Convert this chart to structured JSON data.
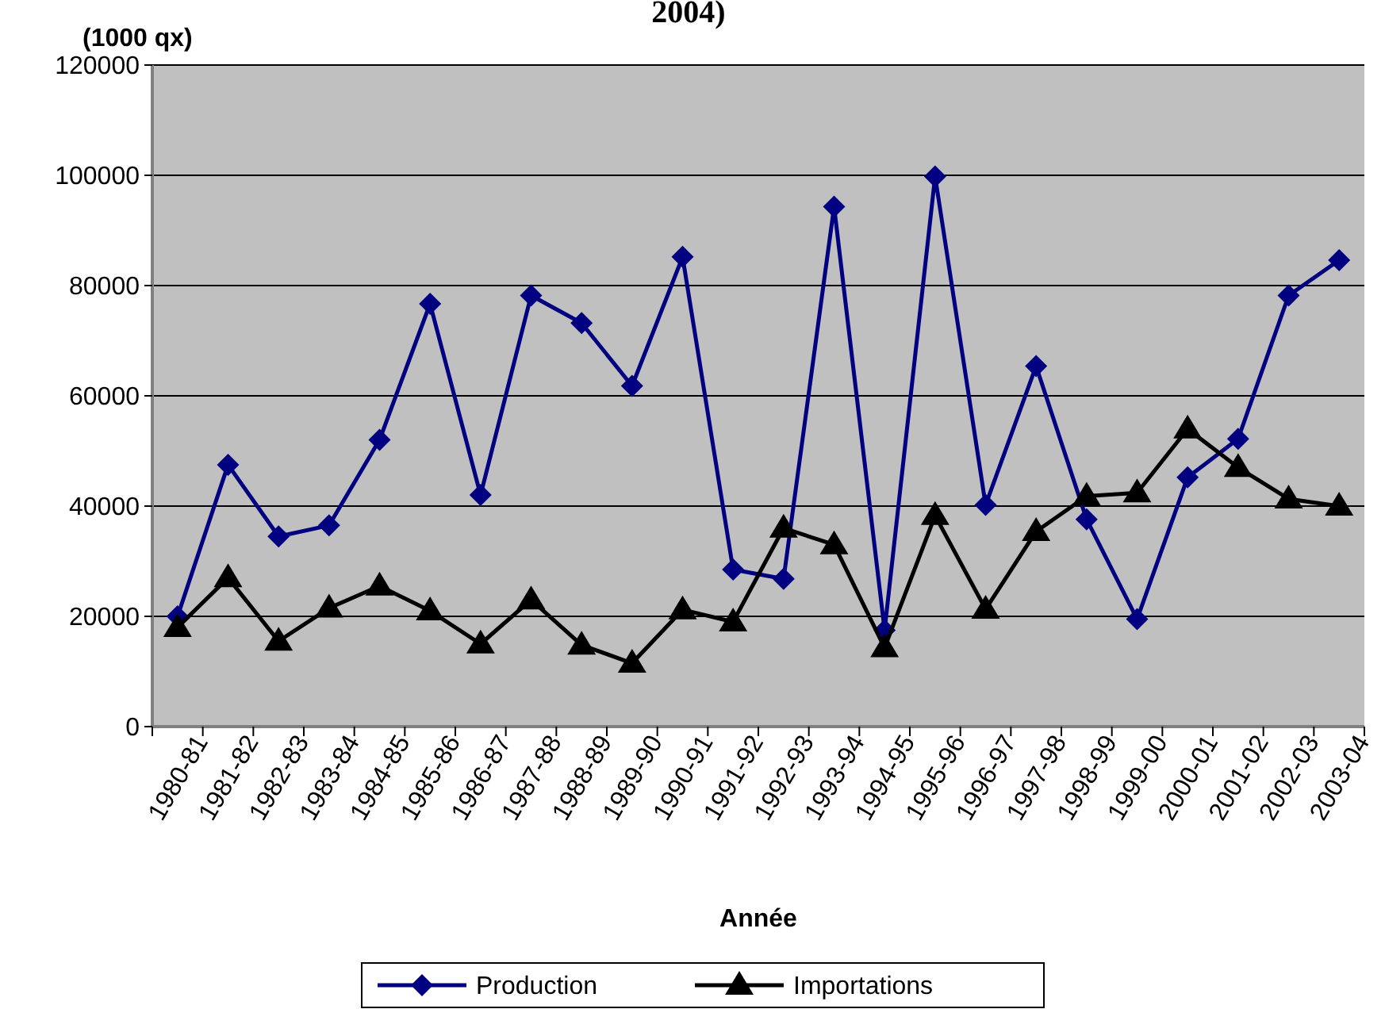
{
  "chart_data": {
    "type": "line",
    "title": "2004)",
    "ylabel": "(1000 qx)",
    "xlabel": "Année",
    "categories": [
      "1980-81",
      "1981-82",
      "1982-83",
      "1983-84",
      "1984-85",
      "1985-86",
      "1986-87",
      "1987-88",
      "1988-89",
      "1989-90",
      "1990-91",
      "1991-92",
      "1992-93",
      "1993-94",
      "1994-95",
      "1995-96",
      "1996-97",
      "1997-98",
      "1998-99",
      "1999-00",
      "2000-01",
      "2001-02",
      "2002-03",
      "2003-04"
    ],
    "series": [
      {
        "name": "Production",
        "color": "#000080",
        "marker": "diamond",
        "values": [
          20000,
          47500,
          34500,
          36500,
          52000,
          76700,
          42000,
          78200,
          73200,
          61800,
          85200,
          28500,
          26800,
          94300,
          17500,
          99800,
          40200,
          65400,
          37600,
          19500,
          45200,
          52200,
          78200,
          84600
        ]
      },
      {
        "name": "Importations",
        "color": "#000000",
        "marker": "triangle",
        "values": [
          18000,
          27000,
          15500,
          21500,
          25500,
          21000,
          15000,
          23000,
          14800,
          11500,
          21200,
          19000,
          36000,
          33000,
          14300,
          38300,
          21300,
          35400,
          41800,
          42400,
          54000,
          47000,
          41300,
          40000
        ]
      }
    ],
    "ylim": [
      0,
      120000
    ],
    "yticks": [
      0,
      20000,
      40000,
      60000,
      80000,
      100000,
      120000
    ],
    "grid": "y",
    "legend": "bottom"
  }
}
